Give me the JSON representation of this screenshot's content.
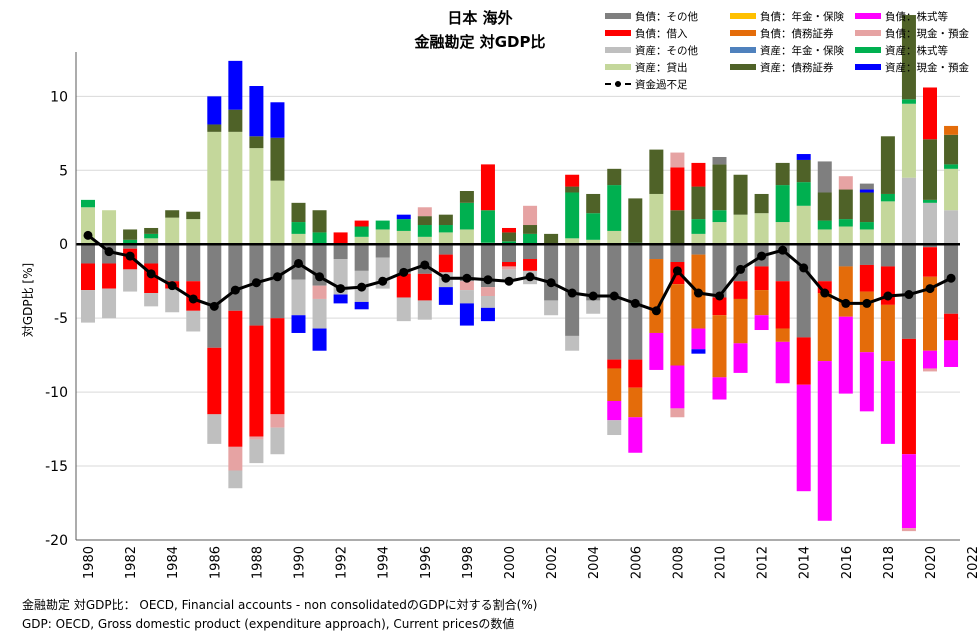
{
  "title": {
    "line1": "日本 海外",
    "line2": "金融勘定 対GDP比"
  },
  "footnotes": {
    "line1": "金融勘定 対GDP比： OECD, Financial accounts - non consolidatedのGDPに対する割合(%)",
    "line2": "GDP: OECD, Gross domestic product (expenditure approach), Current pricesの数値"
  },
  "chart_data": {
    "type": "bar",
    "stacked": true,
    "ylabel": "対GDP比 [%]",
    "ylim": [
      -20,
      13
    ],
    "yticks": [
      10,
      5,
      0,
      -5,
      -10,
      -15,
      -20
    ],
    "x_tick_labels": [
      "1980",
      "1982",
      "1984",
      "1986",
      "1988",
      "1990",
      "1992",
      "1994",
      "1996",
      "1998",
      "2000",
      "2002",
      "2004",
      "2006",
      "2008",
      "2010",
      "2012",
      "2014",
      "2016",
      "2018",
      "2020",
      "2022"
    ],
    "years": [
      1980,
      1981,
      1982,
      1983,
      1984,
      1985,
      1986,
      1987,
      1988,
      1989,
      1990,
      1991,
      1992,
      1993,
      1994,
      1995,
      1996,
      1997,
      1998,
      1999,
      2000,
      2001,
      2002,
      2003,
      2004,
      2005,
      2006,
      2007,
      2008,
      2009,
      2010,
      2011,
      2012,
      2013,
      2014,
      2015,
      2016,
      2017,
      2018,
      2019,
      2020,
      2021
    ],
    "series": [
      {
        "name": "負債：その他",
        "color": "#7f7f7f",
        "values": [
          -1.3,
          -1.3,
          -0.3,
          -1.3,
          -2.5,
          -2.5,
          -7.0,
          -4.5,
          -5.5,
          -5.0,
          -2.4,
          -2.8,
          -1.0,
          -1.8,
          -0.9,
          -2.0,
          -2.0,
          -0.7,
          -2.5,
          -2.9,
          -1.2,
          -1.0,
          -3.8,
          -6.2,
          -3.8,
          -7.8,
          -7.8,
          -1.0,
          -1.2,
          -0.7,
          -3.6,
          -2.5,
          -1.5,
          -2.5,
          -6.3,
          -2.5,
          -1.5,
          -1.4,
          -1.5,
          -6.4,
          -0.2,
          -4.7
        ]
      },
      {
        "name": "負債：借入",
        "color": "#ff0000",
        "values": [
          -1.8,
          -1.7,
          -1.4,
          -2.0,
          -0.5,
          -2.0,
          -4.5,
          -9.2,
          -7.5,
          -6.5,
          0,
          0,
          0,
          0,
          0,
          -1.6,
          -1.8,
          -1.2,
          0,
          0,
          -0.3,
          -0.8,
          0,
          0,
          0,
          -0.6,
          -1.9,
          0,
          -1.5,
          0,
          -1.2,
          -1.2,
          -1.6,
          -3.2,
          -3.2,
          -0.8,
          0,
          -1.8,
          -2.6,
          -7.8,
          -2.0,
          -1.8
        ]
      },
      {
        "name": "負債：年金・保険",
        "color": "#ffc000",
        "values": [
          0,
          0,
          0,
          0,
          0,
          0,
          0,
          0,
          0,
          0,
          0,
          0,
          0,
          0,
          0,
          0,
          0,
          0,
          0,
          0,
          0,
          0,
          0,
          0,
          0,
          0,
          0,
          0,
          0,
          0,
          0,
          0,
          0,
          0,
          0,
          0,
          0,
          0,
          0,
          0,
          0,
          0
        ]
      },
      {
        "name": "負債：債務証券",
        "color": "#e46c0a",
        "values": [
          0,
          0,
          0,
          0,
          0,
          0,
          0,
          0,
          0,
          0,
          0,
          0,
          0,
          0,
          0,
          0,
          0,
          0,
          0,
          0,
          0,
          0,
          0,
          0,
          0,
          -2.2,
          -2.0,
          -5.0,
          -5.5,
          -5.0,
          -4.2,
          -3.0,
          -1.7,
          -0.9,
          0,
          -4.6,
          -3.4,
          -4.1,
          -3.8,
          0,
          -5.0,
          0
        ]
      },
      {
        "name": "負債：株式等",
        "color": "#ff00ff",
        "values": [
          0,
          0,
          0,
          0,
          0,
          0,
          0,
          0,
          0,
          0,
          0,
          0,
          0,
          0,
          0,
          0,
          0,
          0,
          0,
          0,
          0,
          0,
          0,
          0,
          0,
          -1.3,
          -2.4,
          -2.5,
          -2.9,
          -1.4,
          -1.5,
          -2.0,
          -1.0,
          -2.8,
          -7.2,
          -10.8,
          -5.2,
          -4.0,
          -5.6,
          -5.0,
          -1.2,
          -1.8
        ]
      },
      {
        "name": "負債：現金・預金",
        "color": "#e6a3a3",
        "values": [
          0,
          0,
          0,
          0,
          0,
          0,
          0,
          -1.6,
          -0.2,
          -0.9,
          0,
          -0.9,
          0,
          0,
          0,
          0,
          0,
          0,
          -0.6,
          -0.6,
          -0.2,
          0,
          0,
          0,
          0,
          0,
          0,
          0,
          -0.6,
          0,
          0,
          0,
          0,
          0,
          0,
          0,
          0,
          0,
          0,
          -0.2,
          -0.2,
          0
        ]
      },
      {
        "name": "資産：その他",
        "color": "#bfbfbf",
        "values": [
          -2.2,
          -2.0,
          -1.5,
          -0.9,
          -1.6,
          -1.4,
          -2.0,
          -1.2,
          -1.6,
          -1.8,
          -2.4,
          -2.0,
          -2.4,
          -2.1,
          -2.1,
          -1.6,
          -1.3,
          -1.0,
          -0.9,
          -0.8,
          -0.8,
          -0.9,
          -1.0,
          -1.0,
          -0.9,
          -1.0,
          0,
          0,
          0,
          0,
          0,
          0,
          0,
          0,
          0,
          0,
          0,
          0,
          0,
          4.5,
          2.8,
          2.3
        ]
      },
      {
        "name": "資産：貸出",
        "color": "#c4d79b",
        "values": [
          2.5,
          2.3,
          0,
          0.4,
          1.8,
          1.7,
          7.6,
          7.6,
          6.5,
          4.3,
          0.7,
          0,
          0,
          0.5,
          1.0,
          0.9,
          0.5,
          0.8,
          1.0,
          0.1,
          0,
          0,
          0,
          0.4,
          0.3,
          0.9,
          0,
          3.4,
          0,
          0.7,
          1.5,
          2.0,
          2.1,
          1.5,
          2.6,
          1.0,
          1.2,
          1.0,
          2.9,
          5.0,
          0,
          2.8
        ]
      },
      {
        "name": "資産：年金・保険",
        "color": "#4f81bd",
        "values": [
          0,
          0,
          0,
          0,
          0,
          0,
          0,
          0,
          0,
          0,
          0,
          0,
          0,
          0,
          0,
          0,
          0,
          0,
          0,
          0,
          0,
          0,
          0,
          0,
          0,
          0,
          0,
          0,
          0,
          0,
          0,
          0,
          0,
          0,
          0,
          0,
          0,
          0,
          0,
          0,
          0,
          0
        ]
      },
      {
        "name": "資産：株式等",
        "color": "#00b050",
        "values": [
          0.5,
          0,
          0.3,
          0.3,
          0,
          0,
          0,
          0,
          0,
          0,
          0.8,
          0.8,
          0,
          0.7,
          0.6,
          0.8,
          0.8,
          0.5,
          1.8,
          2.2,
          0.2,
          0.7,
          0,
          3.1,
          1.8,
          3.1,
          0.1,
          0,
          0,
          1.0,
          0.8,
          0,
          0,
          2.5,
          1.6,
          0.6,
          0.5,
          0.5,
          0.5,
          0.3,
          0.2,
          0.3
        ]
      },
      {
        "name": "資産：債務証券",
        "color": "#4f6228",
        "values": [
          0,
          0,
          0.7,
          0.4,
          0.5,
          0.5,
          0.5,
          1.5,
          0.8,
          2.9,
          1.3,
          1.5,
          0,
          0,
          0,
          0,
          0.6,
          0.7,
          0.8,
          0,
          0.6,
          0.6,
          0.7,
          0.4,
          1.3,
          1.1,
          3.0,
          3.0,
          2.3,
          2.2,
          3.1,
          2.7,
          1.3,
          1.5,
          1.5,
          1.9,
          2.0,
          2.0,
          3.9,
          5.7,
          4.1,
          2.0
        ]
      },
      {
        "name": "資産：現金・預金",
        "color": "#0000ff",
        "values": [
          0,
          0,
          0,
          0,
          0,
          0,
          1.9,
          3.3,
          3.4,
          2.4,
          -1.2,
          -1.5,
          -0.6,
          -0.5,
          0,
          0.3,
          0,
          -1.2,
          -1.5,
          -0.9,
          0,
          0,
          0,
          0,
          0,
          0,
          0,
          0,
          0,
          -0.3,
          0,
          0,
          0,
          0,
          0.4,
          0,
          0,
          0.2,
          0,
          0,
          0,
          0
        ]
      }
    ],
    "positive_extras": [
      {
        "series": "負債：その他",
        "year": 2010,
        "value": 0.5
      },
      {
        "series": "負債：その他",
        "year": 2015,
        "value": 2.1
      },
      {
        "series": "負債：その他",
        "year": 2017,
        "value": 0.4
      },
      {
        "series": "負債：借入",
        "year": 1992,
        "value": 0.8
      },
      {
        "series": "負債：借入",
        "year": 1993,
        "value": 0.4
      },
      {
        "series": "負債：借入",
        "year": 1999,
        "value": 3.1
      },
      {
        "series": "負債：借入",
        "year": 2000,
        "value": 0.3
      },
      {
        "series": "負債：借入",
        "year": 2003,
        "value": 0.8
      },
      {
        "series": "負債：借入",
        "year": 2008,
        "value": 2.9
      },
      {
        "series": "負債：借入",
        "year": 2009,
        "value": 1.6
      },
      {
        "series": "負債：借入",
        "year": 2020,
        "value": 3.5
      },
      {
        "series": "負債：債務証券",
        "year": 2021,
        "value": 0.6
      },
      {
        "series": "負債：現金・預金",
        "year": 1996,
        "value": 0.6
      },
      {
        "series": "負債：現金・預金",
        "year": 2001,
        "value": 1.3
      },
      {
        "series": "負債：現金・預金",
        "year": 2008,
        "value": 1.0
      },
      {
        "series": "負債：現金・預金",
        "year": 2016,
        "value": 0.9
      }
    ],
    "line": {
      "name": "資金過不足",
      "values": [
        0.6,
        -0.5,
        -0.8,
        -2.0,
        -2.8,
        -3.7,
        -4.2,
        -3.1,
        -2.6,
        -2.2,
        -1.3,
        -2.2,
        -3.0,
        -2.9,
        -2.5,
        -1.9,
        -1.4,
        -2.3,
        -2.3,
        -2.4,
        -2.5,
        -2.2,
        -2.6,
        -3.3,
        -3.5,
        -3.5,
        -4.0,
        -4.5,
        -1.8,
        -3.3,
        -3.5,
        -1.7,
        -0.8,
        -0.4,
        -1.6,
        -3.3,
        -4.0,
        -4.0,
        -3.5,
        -3.4,
        -3.0,
        -2.3
      ]
    }
  },
  "legend": [
    {
      "label": "負債：その他",
      "color": "#7f7f7f"
    },
    {
      "label": "負債：年金・保険",
      "color": "#ffc000"
    },
    {
      "label": "負債：株式等",
      "color": "#ff00ff"
    },
    {
      "label": "負債：借入",
      "color": "#ff0000"
    },
    {
      "label": "負債：債務証券",
      "color": "#e46c0a"
    },
    {
      "label": "負債：現金・預金",
      "color": "#e6a3a3"
    },
    {
      "label": "資産：その他",
      "color": "#bfbfbf"
    },
    {
      "label": "資産：年金・保険",
      "color": "#4f81bd"
    },
    {
      "label": "資産：株式等",
      "color": "#00b050"
    },
    {
      "label": "資産：貸出",
      "color": "#c4d79b"
    },
    {
      "label": "資産：債務証券",
      "color": "#4f6228"
    },
    {
      "label": "資産：現金・預金",
      "color": "#0000ff"
    },
    {
      "label": "資金過不足",
      "color": "#000000",
      "line": true
    }
  ]
}
